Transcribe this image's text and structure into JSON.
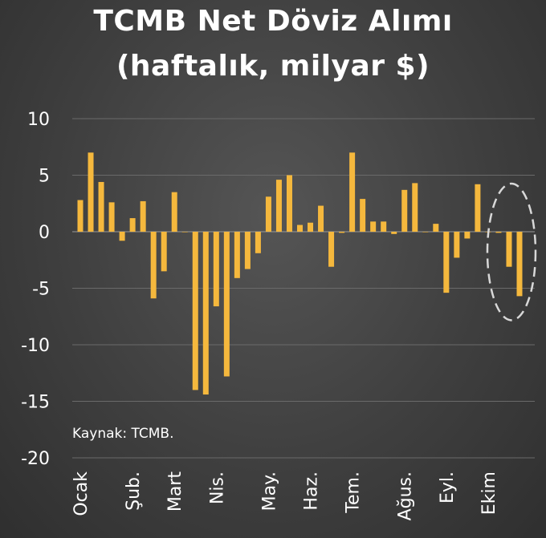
{
  "chart_data": {
    "type": "bar",
    "title": "TCMB Net Döviz Alımı",
    "subtitle": "(haftalık, milyar $)",
    "source": "Kaynak: TCMB.",
    "ylim": [
      -20,
      10
    ],
    "yticks": [
      10,
      5,
      0,
      -5,
      -10,
      -15,
      -20
    ],
    "grid": true,
    "bar_color": "#f5b83d",
    "grid_color": "#6a6a6a",
    "highlight_color": "#d8d8d8",
    "month_labels": [
      {
        "label": "Ocak",
        "index": 0
      },
      {
        "label": "Şub.",
        "index": 5
      },
      {
        "label": "Mart",
        "index": 9
      },
      {
        "label": "Nis.",
        "index": 13
      },
      {
        "label": "May.",
        "index": 18
      },
      {
        "label": "Haz.",
        "index": 22
      },
      {
        "label": "Tem.",
        "index": 26
      },
      {
        "label": "Ağus.",
        "index": 31
      },
      {
        "label": "Eyl.",
        "index": 35
      },
      {
        "label": "Ekim",
        "index": 39
      }
    ],
    "values": [
      2.8,
      7.0,
      4.4,
      2.6,
      -0.8,
      1.2,
      2.7,
      -5.9,
      -3.5,
      3.5,
      0,
      -14.0,
      -14.4,
      -6.6,
      -12.8,
      -4.1,
      -3.3,
      -1.9,
      3.1,
      4.6,
      5.0,
      0.6,
      0.8,
      2.3,
      -3.1,
      -0.1,
      7.0,
      2.9,
      0.9,
      0.9,
      -0.2,
      3.7,
      4.3,
      0,
      0.7,
      -5.4,
      -2.3,
      -0.6,
      4.2,
      0,
      -0.1,
      -3.1,
      -5.7
    ],
    "highlight": {
      "shape": "dashed-ellipse",
      "from_index": 40,
      "to_index": 42
    }
  }
}
